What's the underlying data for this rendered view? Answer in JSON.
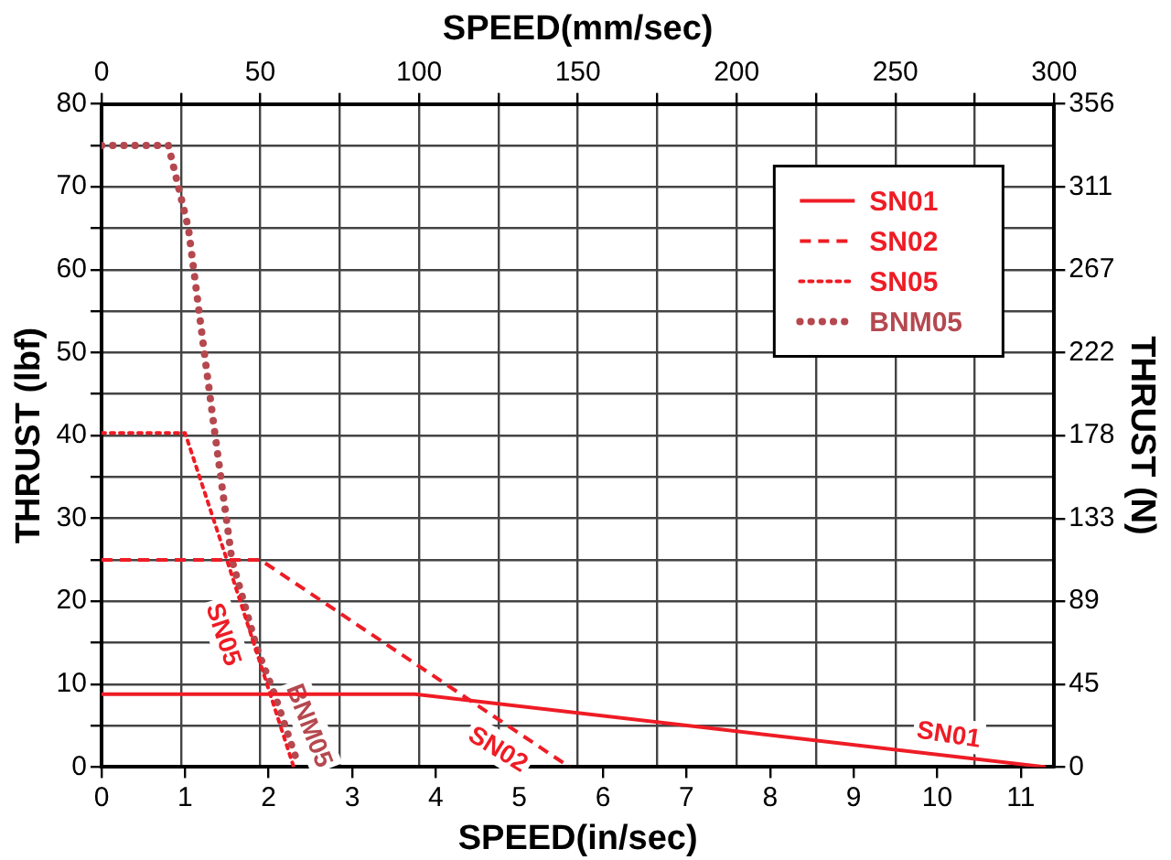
{
  "chart_data": {
    "type": "line",
    "xlabel": "SPEED(in/sec)",
    "x2label": "SPEED(mm/sec)",
    "ylabel": "THRUST (lbf)",
    "y2label": "THRUST (N)",
    "xlim": [
      0,
      11.4
    ],
    "xticks": [
      0,
      1,
      2,
      3,
      4,
      5,
      6,
      7,
      8,
      9,
      10,
      11
    ],
    "x2lim": [
      0,
      300
    ],
    "x2ticks": [
      0,
      {
        "value": 25,
        "label": null
      },
      50,
      {
        "value": 75,
        "label": null
      },
      100,
      {
        "value": 125,
        "label": null
      },
      150,
      {
        "value": 175,
        "label": null
      },
      200,
      {
        "value": 225,
        "label": null
      },
      250,
      {
        "value": 275,
        "label": null
      },
      300
    ],
    "ylim": [
      0,
      80
    ],
    "yticks": [
      0,
      {
        "value": 5,
        "label": null
      },
      10,
      {
        "value": 15,
        "label": null
      },
      20,
      {
        "value": 25,
        "label": null
      },
      30,
      {
        "value": 35,
        "label": null
      },
      40,
      {
        "value": 45,
        "label": null
      },
      50,
      {
        "value": 55,
        "label": null
      },
      60,
      {
        "value": 65,
        "label": null
      },
      70,
      {
        "value": 75,
        "label": null
      },
      80
    ],
    "y2lim": [
      0,
      355.9
    ],
    "y2ticks": [
      0,
      {
        "value": 44.5,
        "label": "45"
      },
      {
        "value": 89,
        "label": "89"
      },
      {
        "value": 133.4,
        "label": "133"
      },
      {
        "value": 177.9,
        "label": "178"
      },
      {
        "value": 222.4,
        "label": "222"
      },
      {
        "value": 266.9,
        "label": "267"
      },
      {
        "value": 311.4,
        "label": "311"
      },
      {
        "value": 355.9,
        "label": "356"
      }
    ],
    "grid": true,
    "legend": "top right",
    "marker": "none",
    "series": [
      {
        "name": "SN01",
        "color": "#ee1c25",
        "line_style": "solid",
        "x": [
          0,
          3.75,
          11.3
        ],
        "values": [
          8.8,
          8.8,
          0
        ]
      },
      {
        "name": "SN02",
        "color": "#ee1c25",
        "line_style": "dashed",
        "x": [
          0,
          1.9,
          5.6
        ],
        "values": [
          25,
          25,
          0
        ]
      },
      {
        "name": "SN05",
        "color": "#ee1c25",
        "line_style": "dotted",
        "x": [
          0,
          1,
          1.5,
          2.3
        ],
        "values": [
          40.3,
          40.3,
          25,
          0
        ]
      },
      {
        "name": "BNM05",
        "color": "#b5484f",
        "line_style": "dotted",
        "x": [
          0,
          0.8,
          1.04,
          1.23,
          1.36,
          1.56,
          1.86,
          2.07,
          2.33
        ],
        "values": [
          75,
          75,
          65,
          50,
          40,
          25,
          14.3,
          8.8,
          1
        ]
      }
    ],
    "annotations": [
      {
        "text": "SN01",
        "x": 10.1,
        "y": 1.4
      },
      {
        "text": "SN02",
        "x": 4.9,
        "y": 4.7
      },
      {
        "text": "SN05",
        "x": 1.76,
        "y": 17
      },
      {
        "text": "BNM05",
        "x": 2.23,
        "y": 4
      }
    ]
  }
}
